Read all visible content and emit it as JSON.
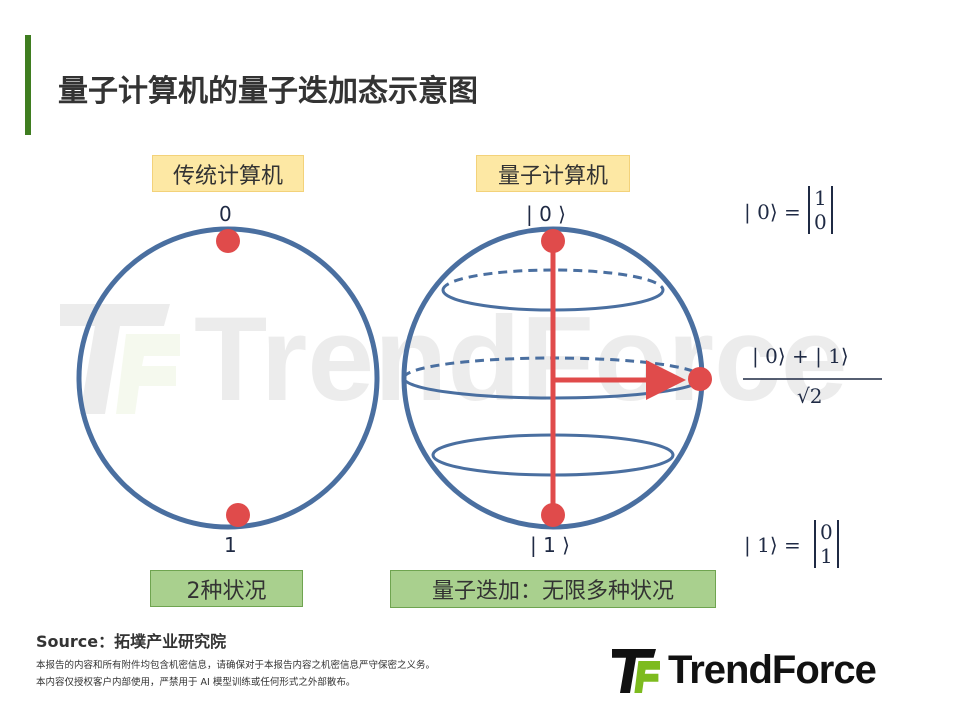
{
  "title": "量子计算机的量子迭加态示意图",
  "classical": {
    "label": "传统计算机",
    "top": "0",
    "bottom": "1",
    "caption": "2种状况"
  },
  "quantum": {
    "label": "量子计算机",
    "top": "| 0 ⟩",
    "bottom": "| 1 ⟩",
    "caption": "量子迭加：无限多种状况"
  },
  "equations": {
    "zero": {
      "lhs": "| 0⟩ =",
      "vec": [
        "1",
        "0"
      ]
    },
    "super": {
      "num": "| 0⟩ +  | 1⟩",
      "den": "√2"
    },
    "one": {
      "lhs": "| 1⟩ =",
      "vec": [
        "0",
        "1"
      ]
    }
  },
  "colors": {
    "sphere": "#4a6fa0",
    "accent": "#e04b4b",
    "title_bar": "#3f7d20",
    "logo_green": "#7dbb1f"
  },
  "footer": {
    "source": "Source：拓墣产业研究院",
    "disclaimer": [
      "本报告的内容和所有附件均包含机密信息，请确保对于本报告内容之机密信息严守保密之义务。",
      "本内容仅授权客户内部使用，严禁用于 AI 模型训练或任何形式之外部散布。"
    ]
  },
  "logo": {
    "text": "TrendForce"
  }
}
